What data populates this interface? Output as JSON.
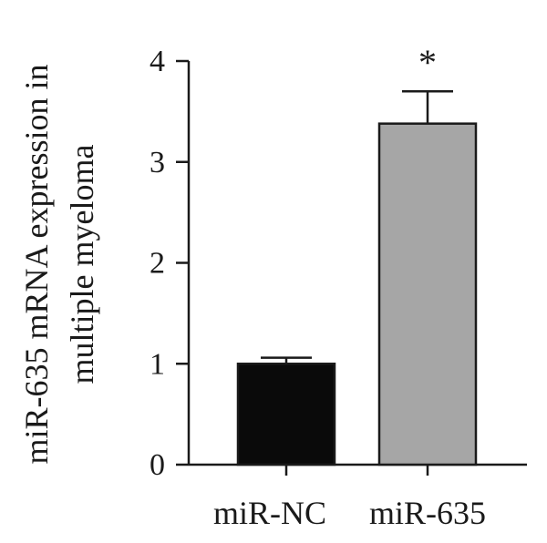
{
  "chart_data": {
    "type": "bar",
    "categories": [
      "miR-NC",
      "miR-635"
    ],
    "values": [
      1.0,
      3.38
    ],
    "error": [
      0.06,
      0.32
    ],
    "bar_colors": [
      "#0a0a0a",
      "#a6a6a6"
    ],
    "significance": [
      "",
      "*"
    ],
    "ylabel_lines": [
      "miR-635 mRNA expression in",
      "multiple myeloma"
    ],
    "xlabel": "",
    "ylim": [
      0,
      4
    ],
    "yticks": [
      0,
      1,
      2,
      3,
      4
    ],
    "grid": false,
    "legend": "none"
  }
}
